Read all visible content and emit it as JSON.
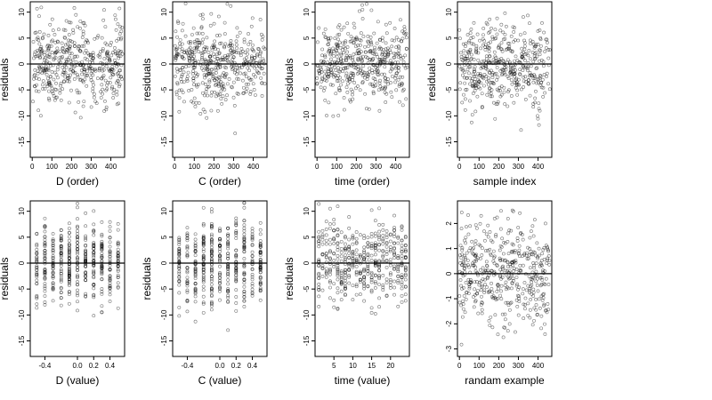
{
  "chart_data": [
    {
      "type": "scatter",
      "xlabel": "D (order)",
      "ylabel": "residuals",
      "xticks": [
        "0",
        "100",
        "200",
        "300",
        "400"
      ],
      "xtick_values": [
        0,
        100,
        200,
        300,
        400
      ],
      "yticks": [
        "-15",
        "-10",
        "-5",
        "0",
        "5",
        "10"
      ],
      "ytick_values": [
        -15,
        -10,
        -5,
        0,
        5,
        10
      ],
      "xlim": [
        -10,
        470
      ],
      "ylim": [
        -18,
        12
      ],
      "reference_line_y": 0,
      "n_points": 460,
      "point_x_range": [
        0,
        460
      ],
      "point_y_mean": 0,
      "point_y_sd": 4.0,
      "grid": false
    },
    {
      "type": "scatter",
      "xlabel": "C (order)",
      "ylabel": "residuals",
      "xticks": [
        "0",
        "100",
        "200",
        "300",
        "400"
      ],
      "xtick_values": [
        0,
        100,
        200,
        300,
        400
      ],
      "yticks": [
        "-15",
        "-10",
        "-5",
        "0",
        "5",
        "10"
      ],
      "ytick_values": [
        -15,
        -10,
        -5,
        0,
        5,
        10
      ],
      "xlim": [
        -10,
        470
      ],
      "ylim": [
        -18,
        12
      ],
      "reference_line_y": 0,
      "n_points": 460,
      "point_x_range": [
        0,
        460
      ],
      "point_y_mean": 0,
      "point_y_sd": 4.0,
      "grid": false
    },
    {
      "type": "scatter",
      "xlabel": "time (order)",
      "ylabel": "residuals",
      "xticks": [
        "0",
        "100",
        "200",
        "300",
        "400"
      ],
      "xtick_values": [
        0,
        100,
        200,
        300,
        400
      ],
      "yticks": [
        "-15",
        "-10",
        "-5",
        "0",
        "5",
        "10"
      ],
      "ytick_values": [
        -15,
        -10,
        -5,
        0,
        5,
        10
      ],
      "xlim": [
        -10,
        470
      ],
      "ylim": [
        -18,
        12
      ],
      "reference_line_y": 0,
      "n_points": 460,
      "point_x_range": [
        0,
        460
      ],
      "point_y_mean": 0,
      "point_y_sd": 4.0,
      "grid": false
    },
    {
      "type": "scatter",
      "xlabel": "sample index",
      "ylabel": "residuals",
      "xticks": [
        "0",
        "100",
        "200",
        "300",
        "400"
      ],
      "xtick_values": [
        0,
        100,
        200,
        300,
        400
      ],
      "yticks": [
        "-15",
        "-10",
        "-5",
        "0",
        "5",
        "10"
      ],
      "ytick_values": [
        -15,
        -10,
        -5,
        0,
        5,
        10
      ],
      "xlim": [
        -10,
        470
      ],
      "ylim": [
        -18,
        12
      ],
      "reference_line_y": 0,
      "n_points": 460,
      "point_x_range": [
        0,
        460
      ],
      "point_y_mean": 0,
      "point_y_sd": 4.0,
      "grid": false
    },
    {
      "type": "scatter",
      "xlabel": "D (value)",
      "ylabel": "residuals",
      "xticks": [
        "-0.4",
        "0.0",
        "0.2",
        "0.4"
      ],
      "xtick_values": [
        -0.4,
        0.0,
        0.2,
        0.4
      ],
      "yticks": [
        "-15",
        "-10",
        "-5",
        "0",
        "5",
        "10"
      ],
      "ytick_values": [
        -15,
        -10,
        -5,
        0,
        5,
        10
      ],
      "xlim": [
        -0.58,
        0.58
      ],
      "ylim": [
        -18,
        12
      ],
      "reference_line_y": 0,
      "n_points": 460,
      "point_x_range": [
        -0.5,
        0.5
      ],
      "point_y_mean": 0,
      "point_y_sd": 4.0,
      "grid": false
    },
    {
      "type": "scatter",
      "xlabel": "C (value)",
      "ylabel": "residuals",
      "xticks": [
        "-0.4",
        "0.0",
        "0.2",
        "0.4"
      ],
      "xtick_values": [
        -0.4,
        0.0,
        0.2,
        0.4
      ],
      "yticks": [
        "-15",
        "-10",
        "-5",
        "0",
        "5",
        "10"
      ],
      "ytick_values": [
        -15,
        -10,
        -5,
        0,
        5,
        10
      ],
      "xlim": [
        -0.58,
        0.58
      ],
      "ylim": [
        -18,
        12
      ],
      "reference_line_y": 0,
      "n_points": 460,
      "point_x_range": [
        -0.5,
        0.5
      ],
      "point_y_mean": 0,
      "point_y_sd": 4.0,
      "grid": false
    },
    {
      "type": "scatter",
      "xlabel": "time (value)",
      "ylabel": "residuals",
      "xticks": [
        "5",
        "10",
        "15",
        "20"
      ],
      "xtick_values": [
        5,
        10,
        15,
        20
      ],
      "yticks": [
        "-15",
        "-10",
        "-5",
        "0",
        "5",
        "10"
      ],
      "ytick_values": [
        -15,
        -10,
        -5,
        0,
        5,
        10
      ],
      "xlim": [
        0,
        25
      ],
      "ylim": [
        -18,
        12
      ],
      "reference_line_y": 0,
      "n_points": 460,
      "point_x_range": [
        1,
        24
      ],
      "point_y_mean": 0,
      "point_y_sd": 4.0,
      "grid": false
    },
    {
      "type": "scatter",
      "xlabel": "randam example",
      "ylabel": "",
      "xticks": [
        "0",
        "100",
        "200",
        "300",
        "400"
      ],
      "xtick_values": [
        0,
        100,
        200,
        300,
        400
      ],
      "yticks": [
        "-3",
        "-2",
        "-1",
        "0",
        "1",
        "2"
      ],
      "ytick_values": [
        -3,
        -2,
        -1,
        0,
        1,
        2
      ],
      "xlim": [
        -10,
        470
      ],
      "ylim": [
        -3.3,
        2.9
      ],
      "reference_line_y": 0,
      "n_points": 460,
      "point_x_range": [
        0,
        460
      ],
      "point_y_mean": 0,
      "point_y_sd": 1.0,
      "grid": false
    }
  ]
}
